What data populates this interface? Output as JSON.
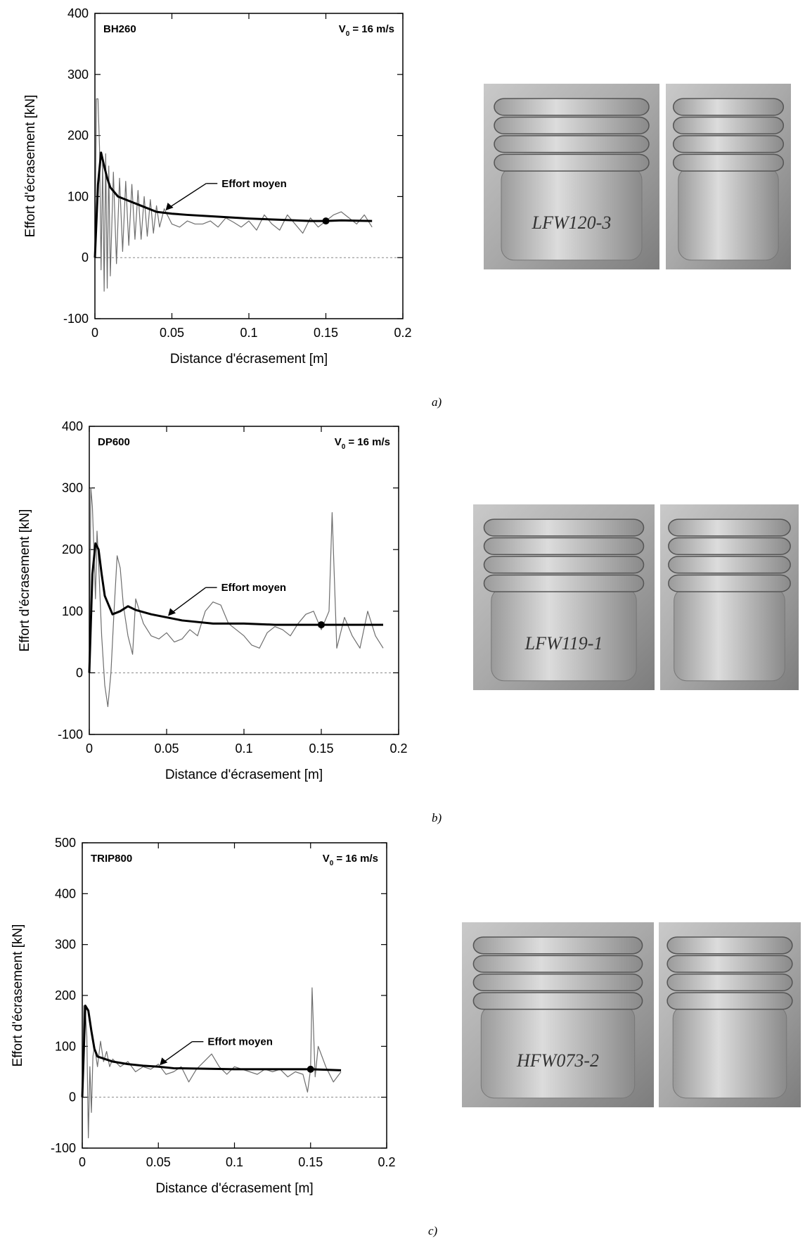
{
  "chart_data": [
    {
      "type": "line",
      "title": "BH260",
      "velocity": {
        "symbol": "V",
        "subscript": "0",
        "text": "= 16 m/s"
      },
      "xlabel": "Distance d'écrasement [m]",
      "ylabel": "Effort d'écrasement [kN]",
      "xlim": [
        0,
        0.2
      ],
      "xticks": [
        0,
        0.05,
        0.1,
        0.15,
        0.2
      ],
      "ylim": [
        -100,
        400
      ],
      "yticks": [
        -100,
        0,
        100,
        200,
        300,
        400
      ],
      "series": [
        {
          "color": "#6e6e6e",
          "x": [
            0,
            0.001,
            0.002,
            0.003,
            0.004,
            0.005,
            0.006,
            0.007,
            0.008,
            0.009,
            0.01,
            0.012,
            0.014,
            0.016,
            0.018,
            0.02,
            0.022,
            0.024,
            0.026,
            0.028,
            0.03,
            0.032,
            0.034,
            0.036,
            0.038,
            0.04,
            0.042,
            0.045,
            0.05,
            0.055,
            0.06,
            0.065,
            0.07,
            0.075,
            0.08,
            0.085,
            0.09,
            0.095,
            0.1,
            0.105,
            0.11,
            0.115,
            0.12,
            0.125,
            0.13,
            0.135,
            0.14,
            0.145,
            0.15,
            0.155,
            0.16,
            0.165,
            0.17,
            0.175,
            0.18
          ],
          "values": [
            0,
            260,
            260,
            180,
            -20,
            160,
            -55,
            170,
            -50,
            150,
            -30,
            140,
            -10,
            130,
            10,
            125,
            20,
            120,
            30,
            110,
            30,
            100,
            35,
            95,
            40,
            85,
            50,
            80,
            55,
            50,
            60,
            55,
            55,
            60,
            50,
            65,
            58,
            50,
            60,
            45,
            70,
            55,
            45,
            70,
            55,
            40,
            65,
            50,
            60,
            70,
            75,
            65,
            55,
            70,
            50
          ]
        },
        {
          "name": "Effort moyen",
          "color": "#000000",
          "x": [
            0,
            0.002,
            0.004,
            0.006,
            0.008,
            0.01,
            0.015,
            0.02,
            0.03,
            0.04,
            0.05,
            0.06,
            0.08,
            0.1,
            0.12,
            0.14,
            0.15,
            0.16,
            0.18
          ],
          "values": [
            0,
            120,
            172,
            150,
            130,
            115,
            100,
            95,
            85,
            75,
            72,
            70,
            67,
            64,
            62,
            60,
            60,
            61,
            60
          ]
        }
      ],
      "marker": {
        "x": 0.15,
        "y": 60
      }
    },
    {
      "type": "line",
      "title": "DP600",
      "velocity": {
        "symbol": "V",
        "subscript": "0",
        "text": "= 16 m/s"
      },
      "xlabel": "Distance d'écrasement [m]",
      "ylabel": "Effort d'écrasement [kN]",
      "xlim": [
        0,
        0.2
      ],
      "xticks": [
        0,
        0.05,
        0.1,
        0.15,
        0.2
      ],
      "ylim": [
        -100,
        400
      ],
      "yticks": [
        -100,
        0,
        100,
        200,
        300,
        400
      ],
      "series": [
        {
          "color": "#6e6e6e",
          "x": [
            0,
            0.001,
            0.002,
            0.003,
            0.004,
            0.005,
            0.006,
            0.008,
            0.01,
            0.012,
            0.014,
            0.016,
            0.018,
            0.02,
            0.022,
            0.025,
            0.028,
            0.03,
            0.035,
            0.04,
            0.045,
            0.05,
            0.055,
            0.06,
            0.065,
            0.07,
            0.075,
            0.08,
            0.085,
            0.09,
            0.095,
            0.1,
            0.105,
            0.11,
            0.115,
            0.12,
            0.125,
            0.13,
            0.135,
            0.14,
            0.145,
            0.15,
            0.155,
            0.157,
            0.16,
            0.165,
            0.17,
            0.175,
            0.18,
            0.185,
            0.19
          ],
          "values": [
            0,
            300,
            270,
            200,
            120,
            230,
            180,
            60,
            -20,
            -55,
            0,
            100,
            190,
            170,
            110,
            60,
            30,
            120,
            80,
            60,
            55,
            65,
            50,
            55,
            70,
            60,
            100,
            115,
            110,
            80,
            70,
            60,
            45,
            40,
            65,
            75,
            70,
            60,
            80,
            95,
            100,
            70,
            100,
            260,
            40,
            90,
            60,
            40,
            100,
            60,
            40
          ]
        },
        {
          "name": "Effort moyen",
          "color": "#000000",
          "x": [
            0,
            0.002,
            0.004,
            0.006,
            0.008,
            0.01,
            0.015,
            0.02,
            0.025,
            0.03,
            0.04,
            0.05,
            0.06,
            0.08,
            0.1,
            0.12,
            0.15,
            0.17,
            0.19
          ],
          "values": [
            0,
            160,
            210,
            200,
            160,
            125,
            95,
            100,
            108,
            102,
            95,
            90,
            85,
            80,
            80,
            78,
            78,
            78,
            78
          ]
        }
      ],
      "marker": {
        "x": 0.15,
        "y": 78
      }
    },
    {
      "type": "line",
      "title": "TRIP800",
      "velocity": {
        "symbol": "V",
        "subscript": "0",
        "text": "= 16 m/s"
      },
      "xlabel": "Distance d'écrasement [m]",
      "ylabel": "Effort d'écrasement [kN]",
      "xlim": [
        0,
        0.2
      ],
      "xticks": [
        0,
        0.05,
        0.1,
        0.15,
        0.2
      ],
      "ylim": [
        -100,
        500
      ],
      "yticks": [
        -100,
        0,
        100,
        200,
        300,
        400,
        500
      ],
      "series": [
        {
          "color": "#6e6e6e",
          "x": [
            0,
            0.001,
            0.002,
            0.003,
            0.004,
            0.005,
            0.006,
            0.007,
            0.008,
            0.01,
            0.012,
            0.014,
            0.016,
            0.018,
            0.02,
            0.025,
            0.03,
            0.035,
            0.04,
            0.045,
            0.05,
            0.055,
            0.06,
            0.065,
            0.07,
            0.075,
            0.08,
            0.085,
            0.09,
            0.095,
            0.1,
            0.105,
            0.11,
            0.115,
            0.12,
            0.125,
            0.13,
            0.135,
            0.14,
            0.145,
            0.148,
            0.15,
            0.151,
            0.153,
            0.155,
            0.16,
            0.165,
            0.17
          ],
          "values": [
            0,
            180,
            170,
            120,
            -80,
            60,
            -30,
            80,
            100,
            60,
            110,
            70,
            90,
            60,
            75,
            60,
            70,
            50,
            60,
            55,
            65,
            45,
            50,
            60,
            30,
            55,
            70,
            85,
            60,
            45,
            60,
            55,
            50,
            45,
            55,
            50,
            55,
            40,
            50,
            45,
            10,
            55,
            215,
            40,
            100,
            60,
            30,
            50
          ]
        },
        {
          "name": "Effort moyen",
          "color": "#000000",
          "x": [
            0,
            0.002,
            0.004,
            0.006,
            0.008,
            0.01,
            0.015,
            0.02,
            0.03,
            0.04,
            0.05,
            0.06,
            0.08,
            0.1,
            0.12,
            0.15,
            0.17
          ],
          "values": [
            0,
            180,
            170,
            130,
            95,
            80,
            75,
            70,
            65,
            62,
            60,
            57,
            56,
            55,
            55,
            55,
            53
          ]
        }
      ],
      "marker": {
        "x": 0.15,
        "y": 55
      }
    }
  ],
  "panels": [
    {
      "caption": "a)",
      "photo_label": "LFW120-3"
    },
    {
      "caption": "b)",
      "photo_label": "LFW119-1"
    },
    {
      "caption": "c)",
      "photo_label": "HFW073-2"
    }
  ]
}
